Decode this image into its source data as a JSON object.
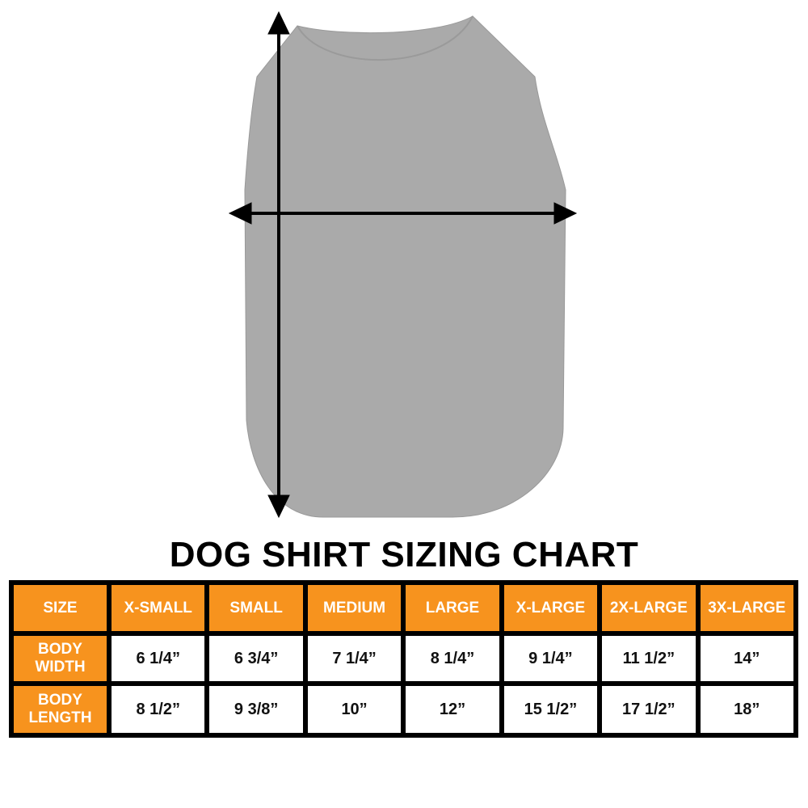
{
  "colors": {
    "header": "#f7931e",
    "shirt": "#a9a9a9",
    "border": "#000000"
  },
  "title": "DOG SHIRT SIZING CHART",
  "table": {
    "header": [
      "SIZE",
      "X-SMALL",
      "SMALL",
      "MEDIUM",
      "LARGE",
      "X-LARGE",
      "2X-LARGE",
      "3X-LARGE"
    ],
    "rows": [
      {
        "label": "BODY WIDTH",
        "values": [
          "6 1/4”",
          "6 3/4”",
          "7 1/4”",
          "8 1/4”",
          "9 1/4”",
          "11 1/2”",
          "14”"
        ]
      },
      {
        "label": "BODY LENGTH",
        "values": [
          "8 1/2”",
          "9 3/8”",
          "10”",
          "12”",
          "15 1/2”",
          "17 1/2”",
          "18”"
        ]
      }
    ]
  }
}
